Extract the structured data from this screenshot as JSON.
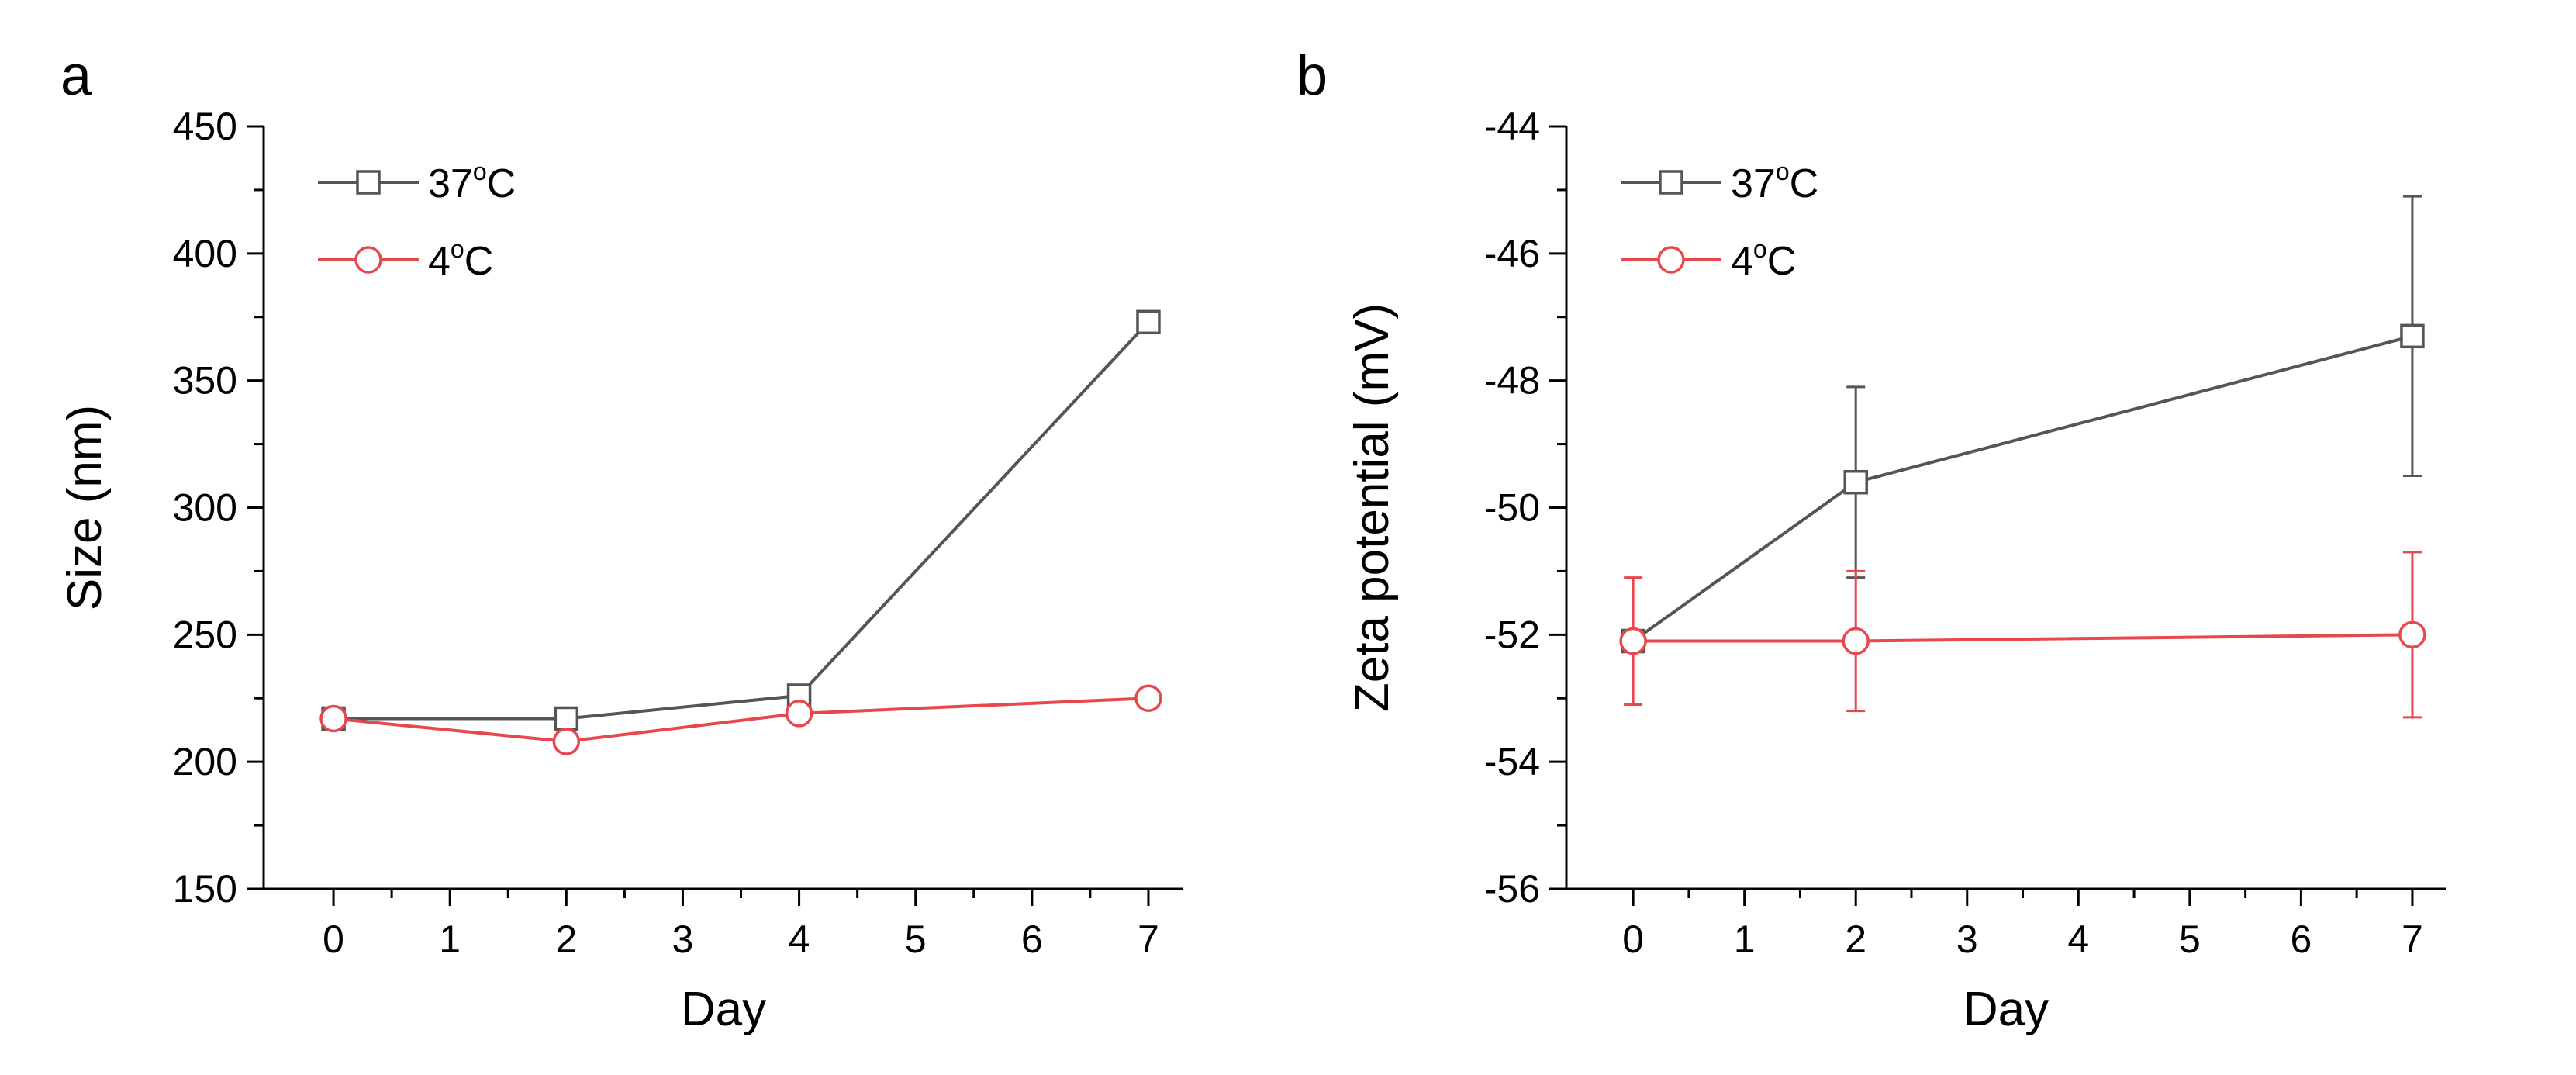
{
  "chart_data": [
    {
      "type": "line",
      "panel_label": "a",
      "xlabel": "Day",
      "ylabel": "Size (nm)",
      "xlim": [
        -0.6,
        7.3
      ],
      "ylim": [
        150,
        450
      ],
      "x_ticks": [
        0,
        1,
        2,
        3,
        4,
        5,
        6,
        7
      ],
      "y_ticks": [
        150,
        200,
        250,
        300,
        350,
        400,
        450
      ],
      "legend_position": "top-left",
      "series": [
        {
          "name_main": "37",
          "name_sup": "o",
          "name_tail": "C",
          "color": "#555555",
          "marker": "square",
          "x": [
            0,
            2,
            4,
            7
          ],
          "values": [
            217,
            217,
            226,
            373
          ]
        },
        {
          "name_main": "4",
          "name_sup": "o",
          "name_tail": "C",
          "color": "#e8474c",
          "marker": "circle",
          "x": [
            0,
            2,
            4,
            7
          ],
          "values": [
            217,
            208,
            219,
            225
          ]
        }
      ]
    },
    {
      "type": "line",
      "panel_label": "b",
      "xlabel": "Day",
      "ylabel": "Zeta potential (mV)",
      "xlim": [
        -0.6,
        7.3
      ],
      "ylim": [
        -56,
        -44
      ],
      "x_ticks": [
        0,
        1,
        2,
        3,
        4,
        5,
        6,
        7
      ],
      "y_ticks": [
        -56,
        -54,
        -52,
        -50,
        -48,
        -46,
        -44
      ],
      "legend_position": "top-left",
      "series": [
        {
          "name_main": "37",
          "name_sup": "o",
          "name_tail": "C",
          "color": "#555555",
          "marker": "square",
          "x": [
            0,
            2,
            7
          ],
          "values": [
            -52.1,
            -49.6,
            -47.3
          ],
          "errors": [
            0.0,
            1.5,
            2.2
          ]
        },
        {
          "name_main": "4",
          "name_sup": "o",
          "name_tail": "C",
          "color": "#e8474c",
          "marker": "circle",
          "x": [
            0,
            2,
            7
          ],
          "values": [
            -52.1,
            -52.1,
            -52.0
          ],
          "errors": [
            1.0,
            1.1,
            1.3
          ]
        }
      ]
    }
  ]
}
